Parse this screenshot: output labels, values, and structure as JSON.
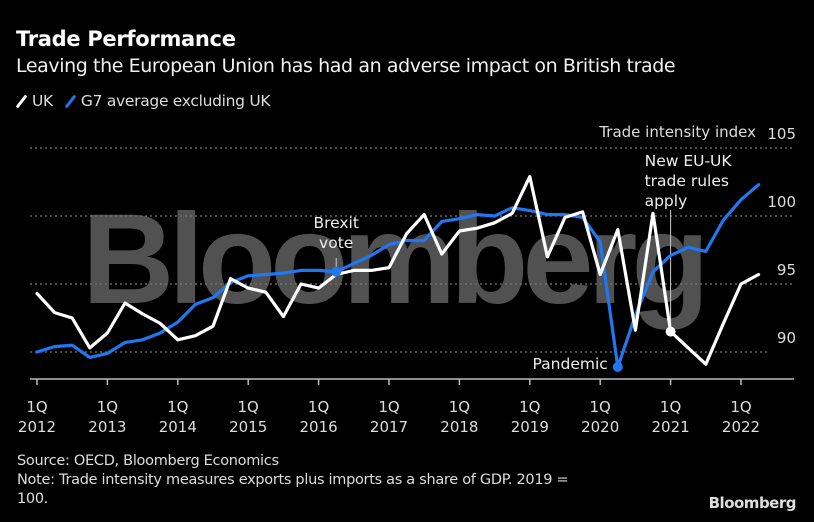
{
  "header": {
    "title": "Trade Performance",
    "subtitle": "Leaving the European Union has had an adverse impact on British trade"
  },
  "legend": [
    {
      "label": "UK",
      "color": "#ffffff"
    },
    {
      "label": "G7 average excluding UK",
      "color": "#1f77f2"
    }
  ],
  "footer": {
    "source": "Source: OECD, Bloomberg Economics",
    "note_line1": "Note: Trade intensity measures exports plus imports as a share of GDP. 2019 =",
    "note_line2": "100.",
    "brand": "Bloomberg"
  },
  "watermark": "Bloomberg",
  "chart_data": {
    "type": "line",
    "title": "Trade Performance",
    "subtitle": "Leaving the European Union has had an adverse impact on British trade",
    "ylabel": "Trade intensity index",
    "xlabel": "",
    "ylim": [
      88,
      105
    ],
    "yticks": [
      90,
      95,
      100,
      105
    ],
    "grid": true,
    "legend_position": "top-left",
    "x_start": "1Q 2012",
    "x_frequency": "quarterly",
    "x_tick_labels": [
      {
        "q": "1Q",
        "year": "2012",
        "index": 0
      },
      {
        "q": "1Q",
        "year": "2013",
        "index": 4
      },
      {
        "q": "1Q",
        "year": "2014",
        "index": 8
      },
      {
        "q": "1Q",
        "year": "2015",
        "index": 12
      },
      {
        "q": "1Q",
        "year": "2016",
        "index": 16
      },
      {
        "q": "1Q",
        "year": "2017",
        "index": 20
      },
      {
        "q": "1Q",
        "year": "2018",
        "index": 24
      },
      {
        "q": "1Q",
        "year": "2019",
        "index": 28
      },
      {
        "q": "1Q",
        "year": "2020",
        "index": 32
      },
      {
        "q": "1Q",
        "year": "2021",
        "index": 36
      },
      {
        "q": "1Q",
        "year": "2022",
        "index": 40
      }
    ],
    "series": [
      {
        "name": "UK",
        "color": "#ffffff",
        "values": [
          94.3,
          92.9,
          92.5,
          90.3,
          91.4,
          93.6,
          92.8,
          92.1,
          90.9,
          91.2,
          91.9,
          95.4,
          94.7,
          94.4,
          92.6,
          95.0,
          94.7,
          95.7,
          96.0,
          96.0,
          96.2,
          98.7,
          100.1,
          97.2,
          98.9,
          99.1,
          99.5,
          100.2,
          102.9,
          97.0,
          99.9,
          100.3,
          95.7,
          99.0,
          91.6,
          100.2,
          91.5,
          90.3,
          89.1,
          92.1,
          95.0,
          95.7
        ]
      },
      {
        "name": "G7 average excluding UK",
        "color": "#1f77f2",
        "values": [
          90.0,
          90.4,
          90.5,
          89.6,
          89.9,
          90.7,
          90.9,
          91.4,
          92.2,
          93.5,
          94.0,
          95.1,
          95.6,
          95.7,
          95.8,
          96.0,
          96.0,
          95.9,
          96.5,
          97.1,
          97.9,
          98.2,
          98.2,
          99.6,
          99.8,
          100.1,
          100.0,
          100.6,
          100.4,
          100.1,
          100.1,
          99.9,
          98.1,
          88.9,
          92.7,
          95.9,
          97.1,
          97.7,
          97.4,
          99.7,
          101.2,
          102.3
        ]
      }
    ],
    "annotations": [
      {
        "lines": [
          "Brexit",
          "vote"
        ],
        "series": "G7 average excluding UK",
        "index": 17
      },
      {
        "lines": [
          "Pandemic"
        ],
        "series": "G7 average excluding UK",
        "index": 33
      },
      {
        "lines": [
          "New EU-UK",
          "trade rules",
          "apply"
        ],
        "series": "UK",
        "index": 36
      }
    ]
  }
}
